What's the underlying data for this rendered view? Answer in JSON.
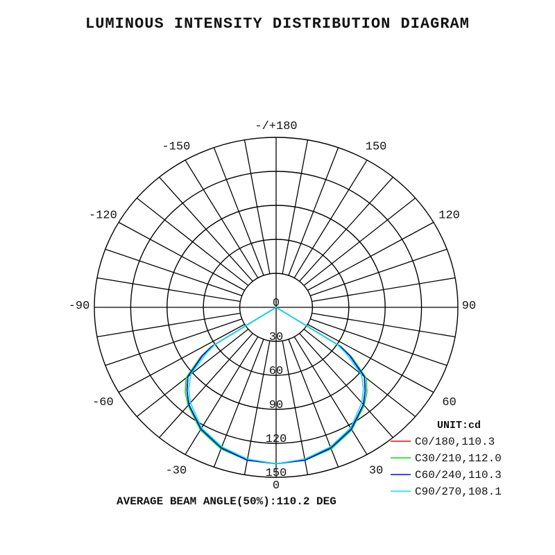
{
  "chart_data": {
    "type": "polar",
    "title": "LUMINOUS INTENSITY DISTRIBUTION DIAGRAM",
    "footer": "AVERAGE BEAM ANGLE(50%):110.2 DEG",
    "unit_label": "UNIT:cd",
    "radial_ticks": [
      "0",
      "30",
      "60",
      "90",
      "120",
      "150"
    ],
    "radial_max": 150,
    "angle_labels": [
      {
        "angle": 180,
        "text": "-/+180"
      },
      {
        "angle": -150,
        "text": "-150"
      },
      {
        "angle": 150,
        "text": "150"
      },
      {
        "angle": -120,
        "text": "-120"
      },
      {
        "angle": 120,
        "text": "120"
      },
      {
        "angle": -90,
        "text": "-90"
      },
      {
        "angle": 90,
        "text": "90"
      },
      {
        "angle": -60,
        "text": "-60"
      },
      {
        "angle": 60,
        "text": "60"
      },
      {
        "angle": -30,
        "text": "-30"
      },
      {
        "angle": 30,
        "text": "30"
      },
      {
        "angle": 0,
        "text": "0"
      }
    ],
    "gamma": [
      0,
      10,
      20,
      30,
      40,
      45,
      50,
      55,
      57,
      60
    ],
    "series": [
      {
        "name": "C0/180,110.3",
        "color": "#ff0000",
        "values": [
          138,
          137,
          132,
          124,
          112,
          104,
          95,
          74,
          63,
          0
        ]
      },
      {
        "name": "C30/210,112.0",
        "color": "#00dd00",
        "values": [
          138,
          137,
          133,
          125,
          113,
          106,
          97,
          76,
          64,
          0
        ]
      },
      {
        "name": "C60/240,110.3",
        "color": "#0000ff",
        "values": [
          138,
          137,
          132,
          124,
          112,
          104,
          95,
          74,
          63,
          0
        ]
      },
      {
        "name": "C90/270,108.1",
        "color": "#00e5ee",
        "values": [
          138,
          136,
          131,
          123,
          110,
          102,
          92,
          70,
          60,
          0
        ]
      }
    ]
  }
}
